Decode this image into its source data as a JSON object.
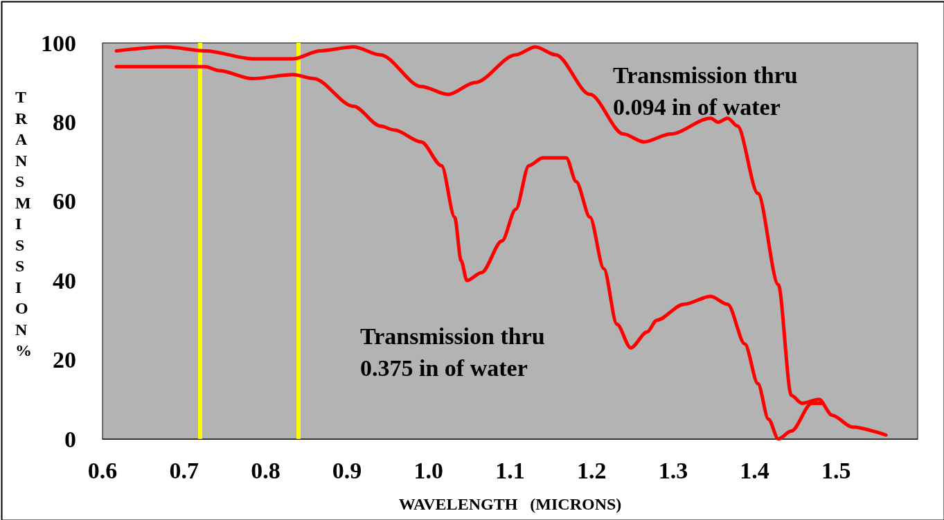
{
  "chart_data": {
    "type": "line",
    "xlabel": "WAVELENGTH   (MICRONS)",
    "ylabel": "TRANSMISSION %",
    "xlim": [
      0.6,
      1.6
    ],
    "xticks": [
      {
        "value": 0.6,
        "label": "0.6"
      },
      {
        "value": 0.7,
        "label": "0.7"
      },
      {
        "value": 0.8,
        "label": "0.8"
      },
      {
        "value": 0.9,
        "label": "0.9"
      },
      {
        "value": 1,
        "label": "1.0"
      },
      {
        "value": 1.1,
        "label": "1.1"
      },
      {
        "value": 1.2,
        "label": "1.2"
      },
      {
        "value": 1.3,
        "label": "1.3"
      },
      {
        "value": 1.4,
        "label": "1.4"
      },
      {
        "value": 1.5,
        "label": "1.5"
      }
    ],
    "ylim": [
      0,
      100
    ],
    "yticks": [
      0,
      20,
      40,
      60,
      80,
      100
    ],
    "grid": false,
    "marker": "none",
    "line_style": "solid",
    "series": [
      {
        "color": "#ff0000",
        "x": [
          0.617,
          0.677,
          0.726,
          0.784,
          0.834,
          0.867,
          0.908,
          0.941,
          0.991,
          1.024,
          1.057,
          1.107,
          1.131,
          1.156,
          1.198,
          1.239,
          1.264,
          1.297,
          1.346,
          1.355,
          1.367,
          1.379,
          1.404,
          1.429,
          1.445,
          1.458,
          1.479,
          1.495,
          1.52,
          1.561
        ],
        "values": [
          98,
          99,
          98,
          96,
          96,
          98,
          99,
          97,
          89,
          87,
          90,
          97,
          99,
          97,
          87,
          77,
          75,
          77,
          81,
          80,
          81,
          79,
          62,
          39,
          11,
          9,
          10,
          6,
          3,
          1
        ]
      },
      {
        "color": "#ff0000",
        "x": [
          0.617,
          0.726,
          0.743,
          0.784,
          0.834,
          0.859,
          0.908,
          0.941,
          0.958,
          0.991,
          1.016,
          1.032,
          1.04,
          1.047,
          1.065,
          1.09,
          1.107,
          1.123,
          1.14,
          1.169,
          1.181,
          1.198,
          1.215,
          1.231,
          1.248,
          1.268,
          1.28,
          1.313,
          1.346,
          1.367,
          1.388,
          1.404,
          1.417,
          1.429,
          1.445,
          1.47,
          1.483
        ],
        "values": [
          94,
          94,
          93,
          91,
          92,
          91,
          84,
          79,
          78,
          75,
          69,
          56,
          45,
          40,
          42,
          50,
          58,
          69,
          71,
          71,
          65,
          56,
          43,
          29,
          23,
          27,
          30,
          34,
          36,
          34,
          24,
          14,
          5,
          0,
          2,
          9,
          9
        ]
      }
    ],
    "ref_lines": [
      {
        "axis": "x",
        "value": 0.723,
        "color": "#ffff00"
      },
      {
        "axis": "x",
        "value": 0.837,
        "color": "#ffff00"
      }
    ],
    "annotations": [
      "Transmission thru\n0.094 in of water",
      "Transmission thru\n0.375 in of water"
    ]
  }
}
